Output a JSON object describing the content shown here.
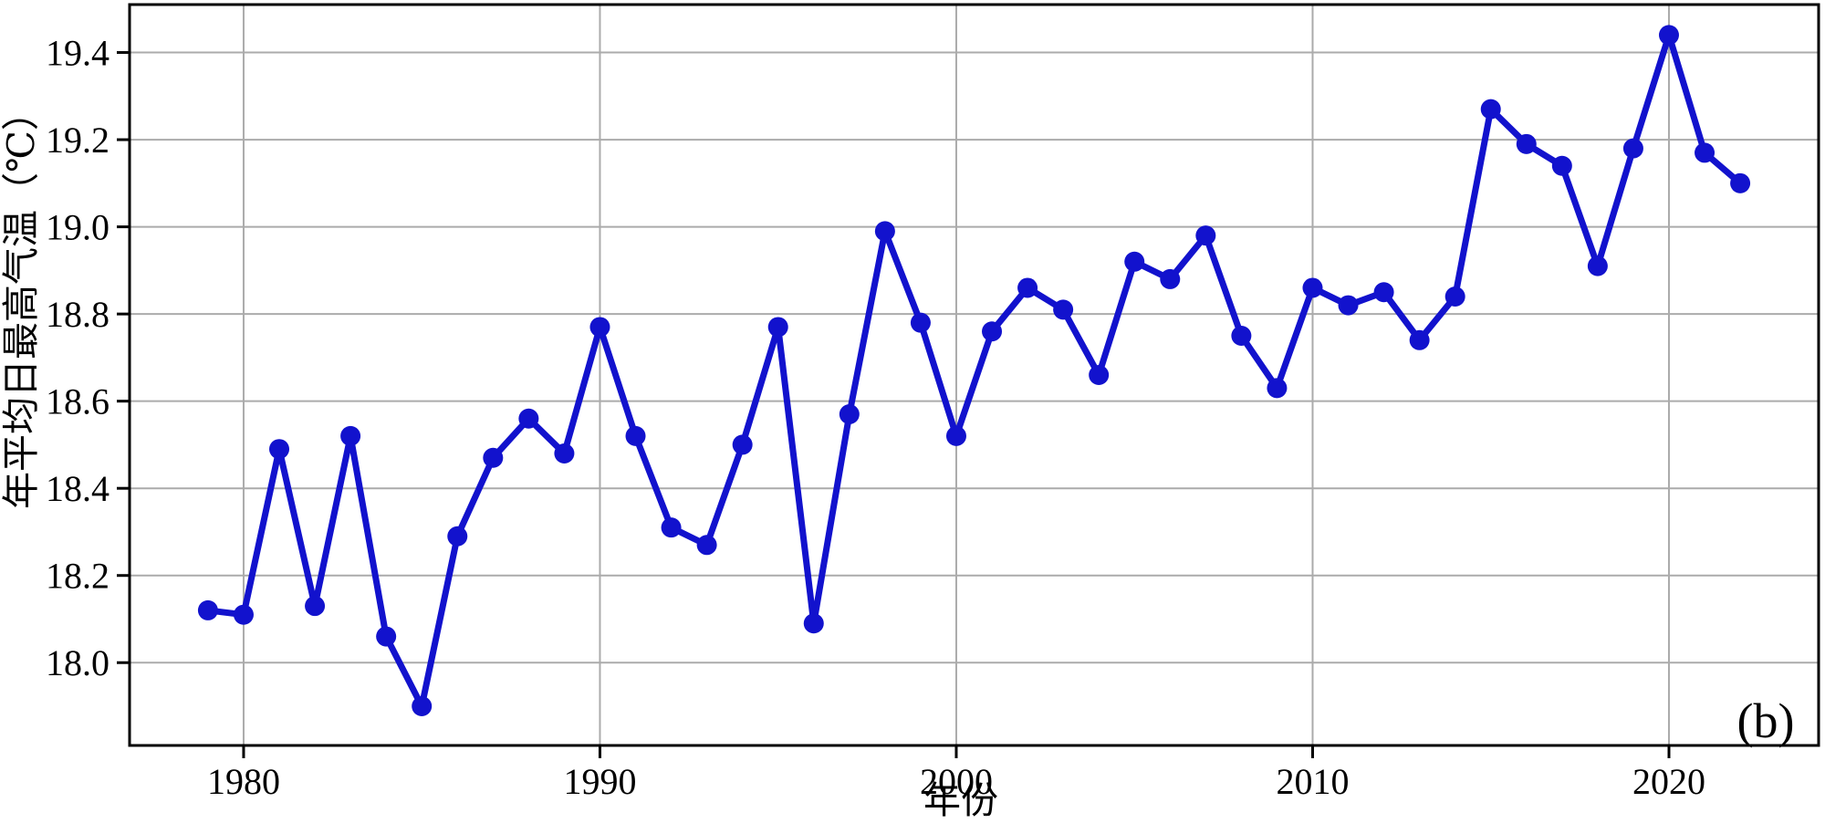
{
  "chart_data": {
    "type": "line",
    "title": "",
    "xlabel": "年份",
    "ylabel": "年平均日最高气温（℃）",
    "panel_label": "(b)",
    "x": [
      1979,
      1980,
      1981,
      1982,
      1983,
      1984,
      1985,
      1986,
      1987,
      1988,
      1989,
      1990,
      1991,
      1992,
      1993,
      1994,
      1995,
      1996,
      1997,
      1998,
      1999,
      2000,
      2001,
      2002,
      2003,
      2004,
      2005,
      2006,
      2007,
      2008,
      2009,
      2010,
      2011,
      2012,
      2013,
      2014,
      2015,
      2016,
      2017,
      2018,
      2019,
      2020,
      2021,
      2022
    ],
    "series": [
      {
        "name": "年平均日最高气温",
        "values": [
          18.12,
          18.11,
          18.49,
          18.13,
          18.52,
          18.06,
          17.9,
          18.29,
          18.47,
          18.56,
          18.48,
          18.77,
          18.52,
          18.31,
          18.27,
          18.5,
          18.77,
          18.09,
          18.57,
          18.99,
          18.78,
          18.52,
          18.76,
          18.86,
          18.81,
          18.66,
          18.92,
          18.88,
          18.98,
          18.75,
          18.63,
          18.86,
          18.82,
          18.85,
          18.74,
          18.84,
          19.27,
          19.19,
          19.14,
          18.91,
          19.18,
          19.44,
          19.17,
          19.1
        ]
      }
    ],
    "xlim": [
      1976.8,
      2024.2
    ],
    "ylim": [
      17.81,
      19.51
    ],
    "xticks": [
      1980,
      1990,
      2000,
      2010,
      2020
    ],
    "yticks": [
      18.0,
      18.2,
      18.4,
      18.6,
      18.8,
      19.0,
      19.2,
      19.4
    ],
    "grid": true,
    "legend_position": "none",
    "colors": {
      "line": "#1212cd",
      "marker": "#1212cd",
      "grid": "#ababab",
      "axis": "#000000",
      "text": "#000000",
      "background": "#ffffff"
    }
  }
}
